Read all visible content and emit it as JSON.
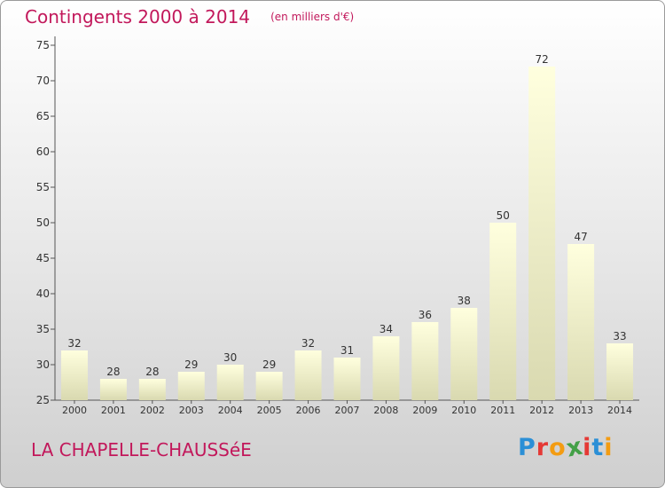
{
  "header": {
    "title": "Contingents 2000 à 2014",
    "unit": "(en milliers d'€)"
  },
  "footer": {
    "place": "LA CHAPELLE-CHAUSSéE",
    "brand": "Proxiti",
    "brand_colors": [
      "#2b8fd6",
      "#e53935",
      "#f39c12",
      "#43a047",
      "#e53935",
      "#2b8fd6",
      "#f39c12"
    ]
  },
  "colors": {
    "title": "#c2185b",
    "bar_top": "#ffffde",
    "bar_bottom": "#d9d9b0",
    "axis": "#555555"
  },
  "chart_data": {
    "type": "bar",
    "categories": [
      "2000",
      "2001",
      "2002",
      "2003",
      "2004",
      "2005",
      "2006",
      "2007",
      "2008",
      "2009",
      "2010",
      "2011",
      "2012",
      "2013",
      "2014"
    ],
    "values": [
      32,
      28,
      28,
      29,
      30,
      29,
      32,
      31,
      34,
      36,
      38,
      50,
      72,
      47,
      33
    ],
    "ylim": [
      25,
      75
    ],
    "yticks": [
      25,
      30,
      35,
      40,
      45,
      50,
      55,
      60,
      65,
      70,
      75
    ],
    "grid": false,
    "legend": "none"
  }
}
